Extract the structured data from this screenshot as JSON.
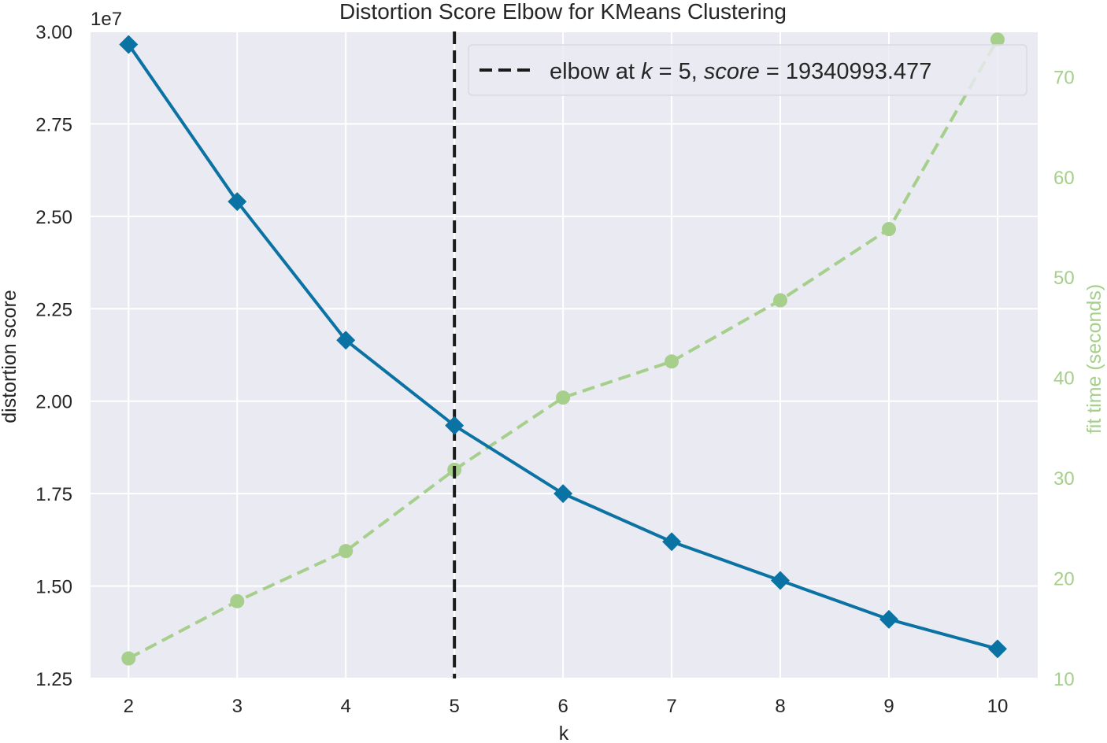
{
  "chart_data": {
    "type": "line",
    "title": "Distortion Score Elbow for KMeans Clustering",
    "xlabel": "k",
    "ylabel": "distortion score",
    "y2label": "fit time (seconds)",
    "y_offset_label": "1e7",
    "x": [
      2,
      3,
      4,
      5,
      6,
      7,
      8,
      9,
      10
    ],
    "xlim": [
      1.65,
      10.37
    ],
    "ylim": [
      12500000,
      30000000
    ],
    "y2lim": [
      10,
      74.5
    ],
    "x_ticks": [
      "2",
      "3",
      "4",
      "5",
      "6",
      "7",
      "8",
      "9",
      "10"
    ],
    "y_ticks": [
      {
        "value": 12500000,
        "label": "1.25"
      },
      {
        "value": 15000000,
        "label": "1.50"
      },
      {
        "value": 17500000,
        "label": "1.75"
      },
      {
        "value": 20000000,
        "label": "2.00"
      },
      {
        "value": 22500000,
        "label": "2.25"
      },
      {
        "value": 25000000,
        "label": "2.50"
      },
      {
        "value": 27500000,
        "label": "2.75"
      },
      {
        "value": 30000000,
        "label": "3.00"
      }
    ],
    "y2_ticks": [
      {
        "value": 10,
        "label": "10"
      },
      {
        "value": 20,
        "label": "20"
      },
      {
        "value": 30,
        "label": "30"
      },
      {
        "value": 40,
        "label": "40"
      },
      {
        "value": 50,
        "label": "50"
      },
      {
        "value": 60,
        "label": "60"
      },
      {
        "value": 70,
        "label": "70"
      }
    ],
    "series": [
      {
        "axis": "left",
        "style": "solid",
        "marker": "diamond",
        "color": "#0b72a4",
        "values": [
          29650000,
          25400000,
          21650000,
          19340993,
          17500000,
          16200000,
          15150000,
          14100000,
          13300000
        ]
      },
      {
        "axis": "right",
        "style": "dashed",
        "marker": "circle",
        "color": "#a6cf8c",
        "values": [
          12,
          17.7,
          22.7,
          30.8,
          38,
          41.6,
          47.7,
          54.8,
          73.7
        ]
      }
    ],
    "elbow": {
      "k": 5,
      "legend_prefix": "elbow at ",
      "k_symbol": "k",
      "k_text": " = 5, ",
      "score_symbol": "score",
      "score_text": " = 19340993.477"
    },
    "grid": true,
    "legend_position": "top-right",
    "colors": {
      "background": "#eaeaf2",
      "grid": "#ffffff",
      "distortion": "#0b72a4",
      "fit_time": "#a6cf8c",
      "elbow": "#1a1a1a"
    }
  }
}
